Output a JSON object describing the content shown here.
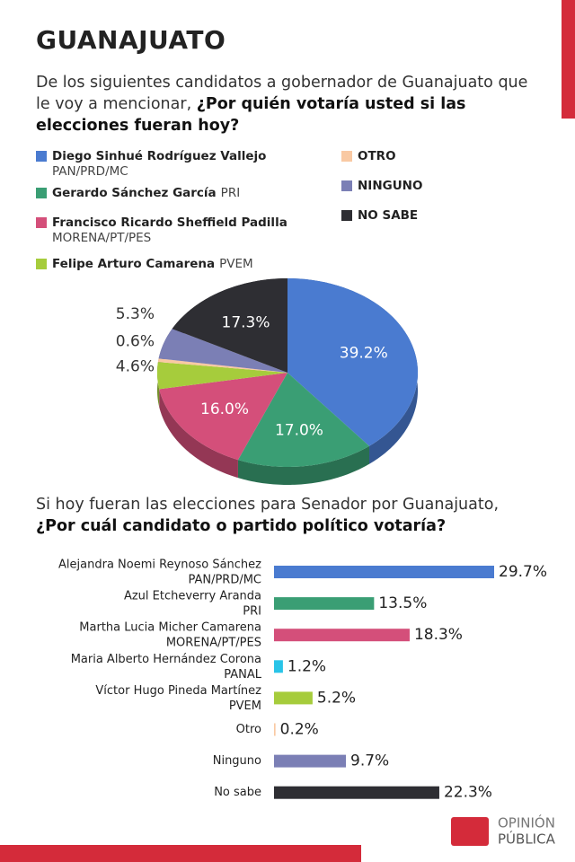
{
  "title": "GUANAJUATO",
  "chart_data": [
    {
      "type": "pie",
      "title": "De los siguientes candidatos a gobernador de Guanajuato que le voy a mencionar,",
      "title_emphasis": "¿Por quién votaría usted si las elecciones fueran hoy?",
      "categories": [
        "Diego Sinhué Rodríguez Vallejo",
        "Gerardo Sánchez García",
        "Francisco Ricardo Sheffield Padilla",
        "Felipe Arturo Camarena",
        "OTRO",
        "NINGUNO",
        "NO SABE"
      ],
      "parties": [
        "PAN/PRD/MC",
        "PRI",
        "MORENA/PT/PES",
        "PVEM",
        null,
        null,
        null
      ],
      "values": [
        39.2,
        17.0,
        16.0,
        4.6,
        0.6,
        5.3,
        17.3
      ],
      "value_labels": [
        "39.2%",
        "17.0%",
        "16.0%",
        "4.6%",
        "0.6%",
        "5.3%",
        "17.3%"
      ],
      "colors": [
        "#4a7bd0",
        "#3a9e74",
        "#d44f7a",
        "#a6cc3c",
        "#f9c9a3",
        "#7b7fb5",
        "#2e2e33"
      ]
    },
    {
      "type": "bar",
      "orientation": "horizontal",
      "title": "Si hoy fueran las elecciones para Senador por Guanajuato,",
      "title_emphasis": "¿Por cuál candidato o partido político votaría?",
      "categories": [
        "Alejandra Noemi Reynoso Sánchez",
        "Azul Etcheverry Aranda",
        "Martha Lucia Micher Camarena",
        "Maria Alberto Hernández Corona",
        "Víctor Hugo Pineda Martínez",
        "Otro",
        "Ninguno",
        "No sabe"
      ],
      "parties": [
        "PAN/PRD/MC",
        "PRI",
        "MORENA/PT/PES",
        "PANAL",
        "PVEM",
        null,
        null,
        null
      ],
      "values": [
        29.7,
        13.5,
        18.3,
        1.2,
        5.2,
        0.2,
        9.7,
        22.3
      ],
      "value_labels": [
        "29.7%",
        "13.5%",
        "18.3%",
        "1.2%",
        "5.2%",
        "0.2%",
        "9.7%",
        "22.3%"
      ],
      "colors": [
        "#4a7bd0",
        "#3a9e74",
        "#d44f7a",
        "#29c4e8",
        "#a6cc3c",
        "#f9c9a3",
        "#7b7fb5",
        "#2e2e33"
      ]
    }
  ],
  "footer": {
    "logo_top": "OPINIÓN",
    "logo_bottom": "PÚBLICA"
  }
}
